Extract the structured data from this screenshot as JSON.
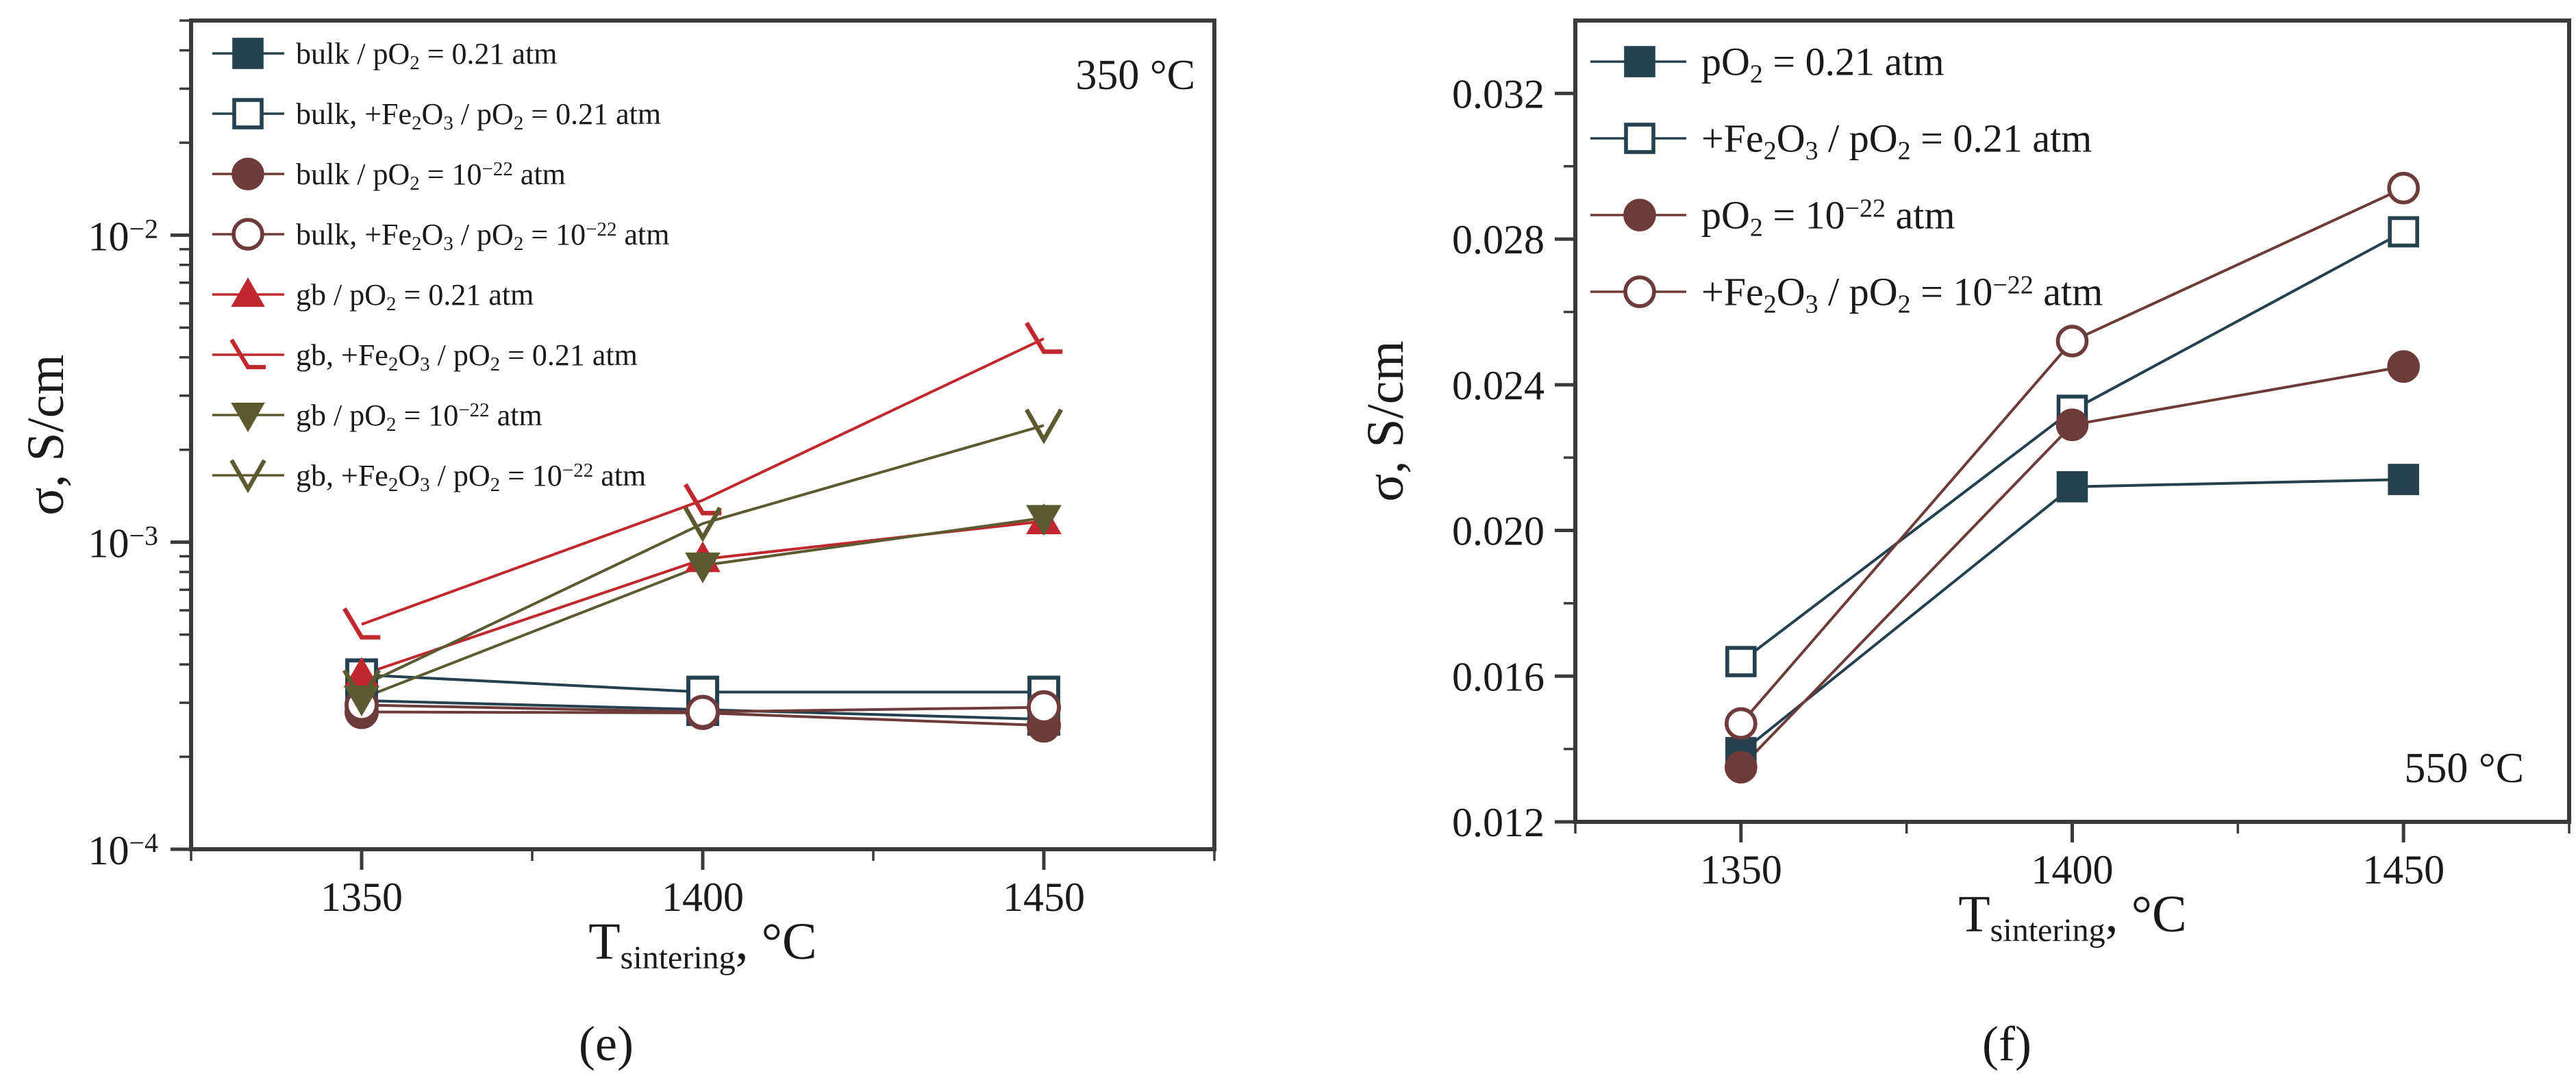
{
  "chart_data": [
    {
      "panel_label": "(e)",
      "type": "line",
      "annotation": "350 °C",
      "xlabel": {
        "main": "T",
        "sub": "sintering",
        "tail": ", °C"
      },
      "ylabel": "σ, S/cm",
      "yscale": "log",
      "xlim": [
        1325,
        1475
      ],
      "ylim": [
        0.0001,
        0.05
      ],
      "x_ticks": [
        1350,
        1400,
        1450
      ],
      "y_ticks": [
        {
          "value": 0.0001,
          "base": "10",
          "exp": "−4"
        },
        {
          "value": 0.001,
          "base": "10",
          "exp": "−3"
        },
        {
          "value": 0.01,
          "base": "10",
          "exp": "−2"
        }
      ],
      "x": [
        1350,
        1400,
        1450
      ],
      "series": [
        {
          "id": "bulk-air",
          "marker": "square-filled",
          "color": "#24414f",
          "legend": [
            {
              "t": "bulk / pO"
            },
            {
              "t": "2",
              "s": "sub"
            },
            {
              "t": " = 0.21 atm"
            }
          ],
          "values": [
            0.000305,
            0.000285,
            0.000265
          ]
        },
        {
          "id": "bulk-fe-air",
          "marker": "square-open",
          "color": "#24414f",
          "legend": [
            {
              "t": "bulk, +Fe"
            },
            {
              "t": "2",
              "s": "sub"
            },
            {
              "t": "O"
            },
            {
              "t": "3",
              "s": "sub"
            },
            {
              "t": " / pO"
            },
            {
              "t": "2",
              "s": "sub"
            },
            {
              "t": " = 0.21 atm"
            }
          ],
          "values": [
            0.00037,
            0.000325,
            0.000325
          ]
        },
        {
          "id": "bulk-low",
          "marker": "circle-filled",
          "color": "#6e3b3b",
          "legend": [
            {
              "t": "bulk / pO"
            },
            {
              "t": "2",
              "s": "sub"
            },
            {
              "t": " = 10"
            },
            {
              "t": "−22",
              "s": "sup"
            },
            {
              "t": " atm"
            }
          ],
          "values": [
            0.00028,
            0.000278,
            0.000253
          ]
        },
        {
          "id": "bulk-fe-low",
          "marker": "circle-open",
          "color": "#6e3b3b",
          "legend": [
            {
              "t": "bulk, +Fe"
            },
            {
              "t": "2",
              "s": "sub"
            },
            {
              "t": "O"
            },
            {
              "t": "3",
              "s": "sub"
            },
            {
              "t": " / pO"
            },
            {
              "t": "2",
              "s": "sub"
            },
            {
              "t": " = 10"
            },
            {
              "t": "−22",
              "s": "sup"
            },
            {
              "t": " atm"
            }
          ],
          "values": [
            0.000295,
            0.00028,
            0.00029
          ]
        },
        {
          "id": "gb-air",
          "marker": "triangle-up-filled",
          "color": "#c0282d",
          "legend": [
            {
              "t": "gb / pO"
            },
            {
              "t": "2",
              "s": "sub"
            },
            {
              "t": " = 0.21 atm"
            }
          ],
          "values": [
            0.00037,
            0.00088,
            0.00117
          ]
        },
        {
          "id": "gb-fe-air",
          "marker": "corner-open",
          "color": "#c0282d",
          "legend": [
            {
              "t": "gb, +Fe"
            },
            {
              "t": "2",
              "s": "sub"
            },
            {
              "t": "O"
            },
            {
              "t": "3",
              "s": "sub"
            },
            {
              "t": " / pO"
            },
            {
              "t": "2",
              "s": "sub"
            },
            {
              "t": " = 0.21 atm"
            }
          ],
          "values": [
            0.00054,
            0.00137,
            0.0046
          ]
        },
        {
          "id": "gb-low",
          "marker": "triangle-down-filled",
          "color": "#5b5a30",
          "legend": [
            {
              "t": "gb / pO"
            },
            {
              "t": "2",
              "s": "sub"
            },
            {
              "t": " = 10"
            },
            {
              "t": "−22",
              "s": "sup"
            },
            {
              "t": " atm"
            }
          ],
          "values": [
            0.00031,
            0.00084,
            0.0012
          ]
        },
        {
          "id": "gb-fe-low",
          "marker": "chevron-down-open",
          "color": "#5b5a30",
          "legend": [
            {
              "t": "gb, +Fe"
            },
            {
              "t": "2",
              "s": "sub"
            },
            {
              "t": "O"
            },
            {
              "t": "3",
              "s": "sub"
            },
            {
              "t": " / pO"
            },
            {
              "t": "2",
              "s": "sub"
            },
            {
              "t": " = 10"
            },
            {
              "t": "−22",
              "s": "sup"
            },
            {
              "t": " atm"
            }
          ],
          "values": [
            0.00034,
            0.00115,
            0.0024
          ]
        }
      ]
    },
    {
      "panel_label": "(f)",
      "type": "line",
      "annotation": "550 °C",
      "xlabel": {
        "main": "T",
        "sub": "sintering",
        "tail": ", °C"
      },
      "ylabel": "σ, S/cm",
      "yscale": "linear",
      "xlim": [
        1325,
        1475
      ],
      "ylim": [
        0.012,
        0.034
      ],
      "x_ticks": [
        1350,
        1400,
        1450
      ],
      "y_ticks": [
        {
          "value": 0.012,
          "label": "0.012"
        },
        {
          "value": 0.016,
          "label": "0.016"
        },
        {
          "value": 0.02,
          "label": "0.020"
        },
        {
          "value": 0.024,
          "label": "0.024"
        },
        {
          "value": 0.028,
          "label": "0.028"
        },
        {
          "value": 0.032,
          "label": "0.032"
        }
      ],
      "x": [
        1350,
        1400,
        1450
      ],
      "series": [
        {
          "id": "air",
          "marker": "square-filled",
          "color": "#24414f",
          "legend": [
            {
              "t": "pO"
            },
            {
              "t": "2",
              "s": "sub"
            },
            {
              "t": " = 0.21 atm"
            }
          ],
          "values": [
            0.0139,
            0.0212,
            0.0214
          ]
        },
        {
          "id": "fe-air",
          "marker": "square-open",
          "color": "#24414f",
          "legend": [
            {
              "t": "+Fe"
            },
            {
              "t": "2",
              "s": "sub"
            },
            {
              "t": "O"
            },
            {
              "t": "3",
              "s": "sub"
            },
            {
              "t": " / pO"
            },
            {
              "t": "2",
              "s": "sub"
            },
            {
              "t": " = 0.21 atm"
            }
          ],
          "values": [
            0.0164,
            0.0233,
            0.0282
          ]
        },
        {
          "id": "low",
          "marker": "circle-filled",
          "color": "#6e3b3b",
          "legend": [
            {
              "t": "pO"
            },
            {
              "t": "2",
              "s": "sub"
            },
            {
              "t": " = 10"
            },
            {
              "t": "−22",
              "s": "sup"
            },
            {
              "t": " atm"
            }
          ],
          "values": [
            0.0135,
            0.0229,
            0.0245
          ]
        },
        {
          "id": "fe-low",
          "marker": "circle-open",
          "color": "#6e3b3b",
          "legend": [
            {
              "t": "+Fe"
            },
            {
              "t": "2",
              "s": "sub"
            },
            {
              "t": "O"
            },
            {
              "t": "3",
              "s": "sub"
            },
            {
              "t": " / pO"
            },
            {
              "t": "2",
              "s": "sub"
            },
            {
              "t": " = 10"
            },
            {
              "t": "−22",
              "s": "sup"
            },
            {
              "t": " atm"
            }
          ],
          "values": [
            0.0147,
            0.0252,
            0.0294
          ]
        }
      ]
    }
  ]
}
